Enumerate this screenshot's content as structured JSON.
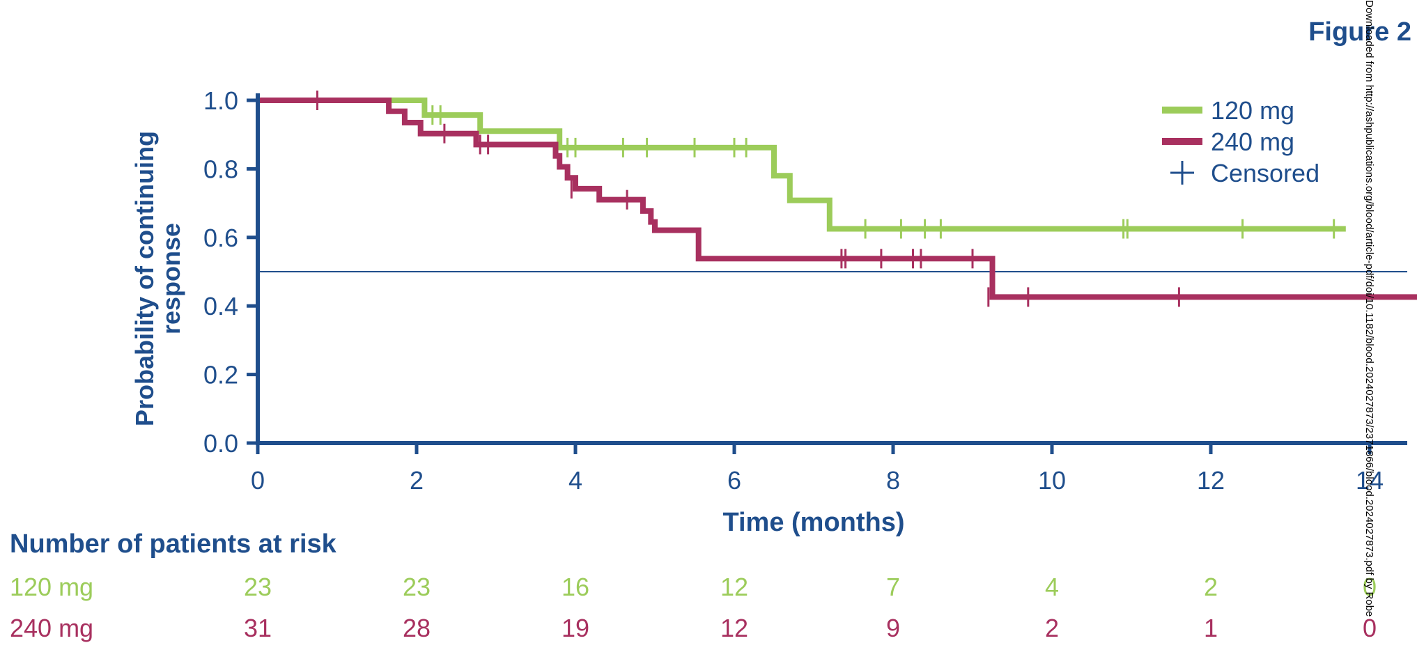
{
  "figure_label": "Figure 2",
  "watermark": "Downloaded from http://ashpublications.org/blood/article-pdf/doi/10.1182/blood.2024027873/2371866/blood.2024027873.pdf by Robe",
  "colors": {
    "navy": "#1f4e8c",
    "green": "#9ccc5a",
    "magenta": "#a8305f"
  },
  "chart_data": {
    "type": "line",
    "subtype": "kaplan-meier",
    "xlabel": "Time (months)",
    "ylabel": "Probability of continuing response",
    "xlim": [
      0,
      14.5
    ],
    "ylim": [
      0,
      1.0
    ],
    "x_ticks": [
      0,
      2,
      4,
      6,
      8,
      10,
      12,
      14
    ],
    "y_ticks": [
      "0.0",
      "0.2",
      "0.4",
      "0.6",
      "0.8",
      "1.0"
    ],
    "reference_line": 0.5,
    "grid": false,
    "legend": {
      "position": "top-right",
      "censored_label": "Censored"
    },
    "series": [
      {
        "name": "120 mg",
        "color": "#9ccc5a",
        "steps": [
          [
            0,
            1.0
          ],
          [
            1.7,
            1.0
          ],
          [
            2.1,
            0.957
          ],
          [
            2.8,
            0.91
          ],
          [
            3.8,
            0.862
          ],
          [
            6.5,
            0.78
          ],
          [
            6.7,
            0.708
          ],
          [
            7.2,
            0.625
          ],
          [
            13.7,
            0.625
          ]
        ],
        "censored": [
          [
            2.2,
            0.957
          ],
          [
            2.3,
            0.957
          ],
          [
            3.9,
            0.862
          ],
          [
            4.0,
            0.862
          ],
          [
            4.6,
            0.862
          ],
          [
            4.9,
            0.862
          ],
          [
            5.5,
            0.862
          ],
          [
            6.0,
            0.862
          ],
          [
            6.15,
            0.862
          ],
          [
            7.65,
            0.625
          ],
          [
            8.1,
            0.625
          ],
          [
            8.4,
            0.625
          ],
          [
            8.6,
            0.625
          ],
          [
            10.9,
            0.625
          ],
          [
            10.95,
            0.625
          ],
          [
            12.4,
            0.625
          ],
          [
            13.55,
            0.625
          ]
        ]
      },
      {
        "name": "240 mg",
        "color": "#a8305f",
        "steps": [
          [
            0,
            1.0
          ],
          [
            1.65,
            0.968
          ],
          [
            1.85,
            0.935
          ],
          [
            2.05,
            0.903
          ],
          [
            2.75,
            0.871
          ],
          [
            3.75,
            0.838
          ],
          [
            3.8,
            0.806
          ],
          [
            3.9,
            0.774
          ],
          [
            4.0,
            0.742
          ],
          [
            4.3,
            0.71
          ],
          [
            4.85,
            0.677
          ],
          [
            4.95,
            0.645
          ],
          [
            5.0,
            0.621
          ],
          [
            5.55,
            0.538
          ],
          [
            9.25,
            0.538
          ],
          [
            9.25,
            0.426
          ],
          [
            14.7,
            0.426
          ]
        ],
        "censored": [
          [
            0.75,
            1.0
          ],
          [
            2.35,
            0.903
          ],
          [
            2.8,
            0.871
          ],
          [
            2.9,
            0.871
          ],
          [
            3.95,
            0.742
          ],
          [
            4.65,
            0.71
          ],
          [
            7.35,
            0.538
          ],
          [
            7.4,
            0.538
          ],
          [
            7.85,
            0.538
          ],
          [
            8.25,
            0.538
          ],
          [
            8.35,
            0.538
          ],
          [
            9.0,
            0.538
          ],
          [
            9.2,
            0.426
          ],
          [
            9.7,
            0.426
          ],
          [
            11.6,
            0.426
          ]
        ]
      }
    ],
    "risk_table": {
      "title": "Number of patients at risk",
      "times": [
        0,
        2,
        4,
        6,
        8,
        10,
        12,
        14
      ],
      "rows": [
        {
          "label": "120 mg",
          "color": "#9ccc5a",
          "values": [
            "23",
            "23",
            "16",
            "12",
            "7",
            "4",
            "2",
            "0"
          ]
        },
        {
          "label": "240 mg",
          "color": "#a8305f",
          "values": [
            "31",
            "28",
            "19",
            "12",
            "9",
            "2",
            "1",
            "0"
          ]
        }
      ]
    }
  }
}
